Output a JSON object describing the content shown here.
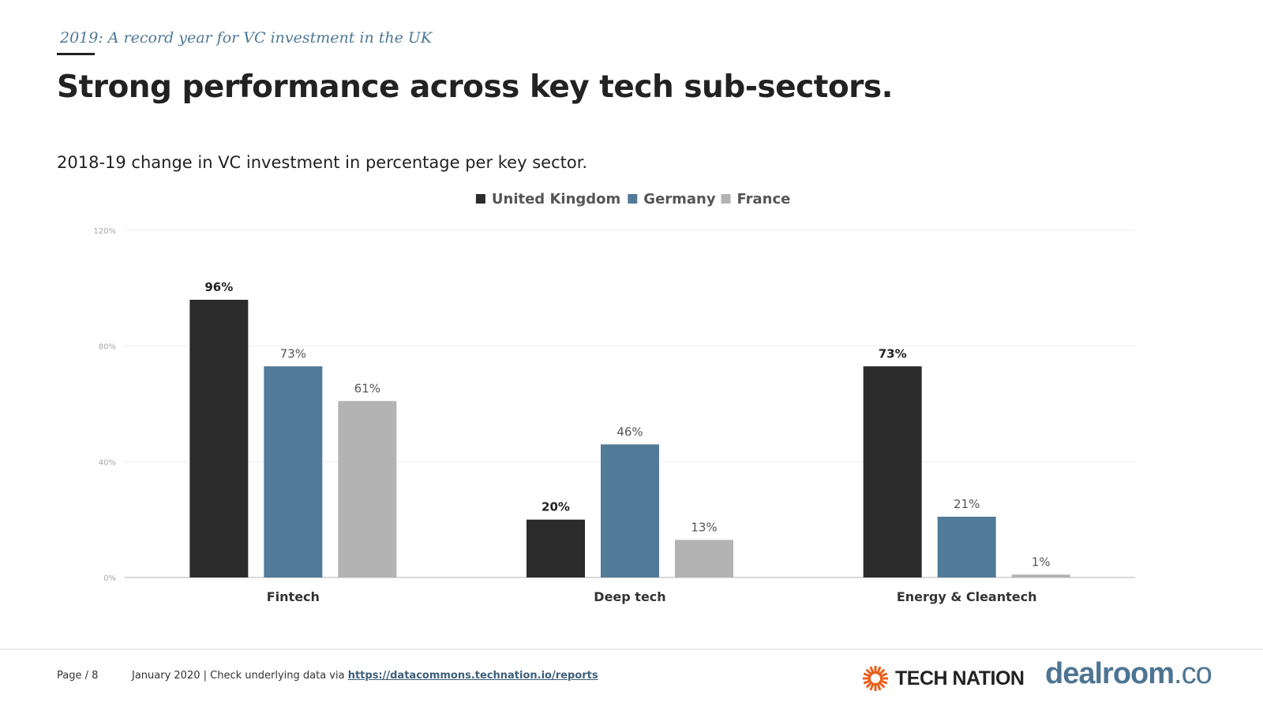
{
  "header": {
    "kicker": "2019: A record year for VC investment in the UK",
    "title": "Strong performance across key tech sub-sectors."
  },
  "chart_data": {
    "type": "bar",
    "title": "2018-19 change in VC investment in percentage per key sector.",
    "categories": [
      "Fintech",
      "Deep tech",
      "Energy & Cleantech"
    ],
    "series": [
      {
        "name": "United Kingdom",
        "values": [
          96,
          20,
          73
        ],
        "labels": [
          "96%",
          "20%",
          "73%"
        ],
        "color": "#2b2b2b",
        "label_bold": true
      },
      {
        "name": "Germany",
        "values": [
          73,
          46,
          21
        ],
        "labels": [
          "73%",
          "46%",
          "21%"
        ],
        "color": "#527a99",
        "label_bold": false
      },
      {
        "name": "France",
        "values": [
          61,
          13,
          1
        ],
        "labels": [
          "61%",
          "13%",
          "1%"
        ],
        "color": "#b3b3b3",
        "label_bold": false
      }
    ],
    "ylim": [
      0,
      120
    ],
    "yticks": [
      0,
      40,
      80,
      120
    ],
    "ytick_labels": [
      "0%",
      "40%",
      "80%",
      "120%"
    ],
    "xlabel": "",
    "ylabel": "",
    "legend_position": "top-center",
    "grid": true
  },
  "footer": {
    "page": "Page / 8",
    "note": "January 2020 | Check underlying data via ",
    "link": "https://datacommons.technation.io/reports"
  },
  "logos": {
    "tech_nation": "TECH NATION",
    "dealroom_name": "dealroom",
    "dealroom_tld": ".co",
    "tech_nation_color": "#e8601c"
  }
}
